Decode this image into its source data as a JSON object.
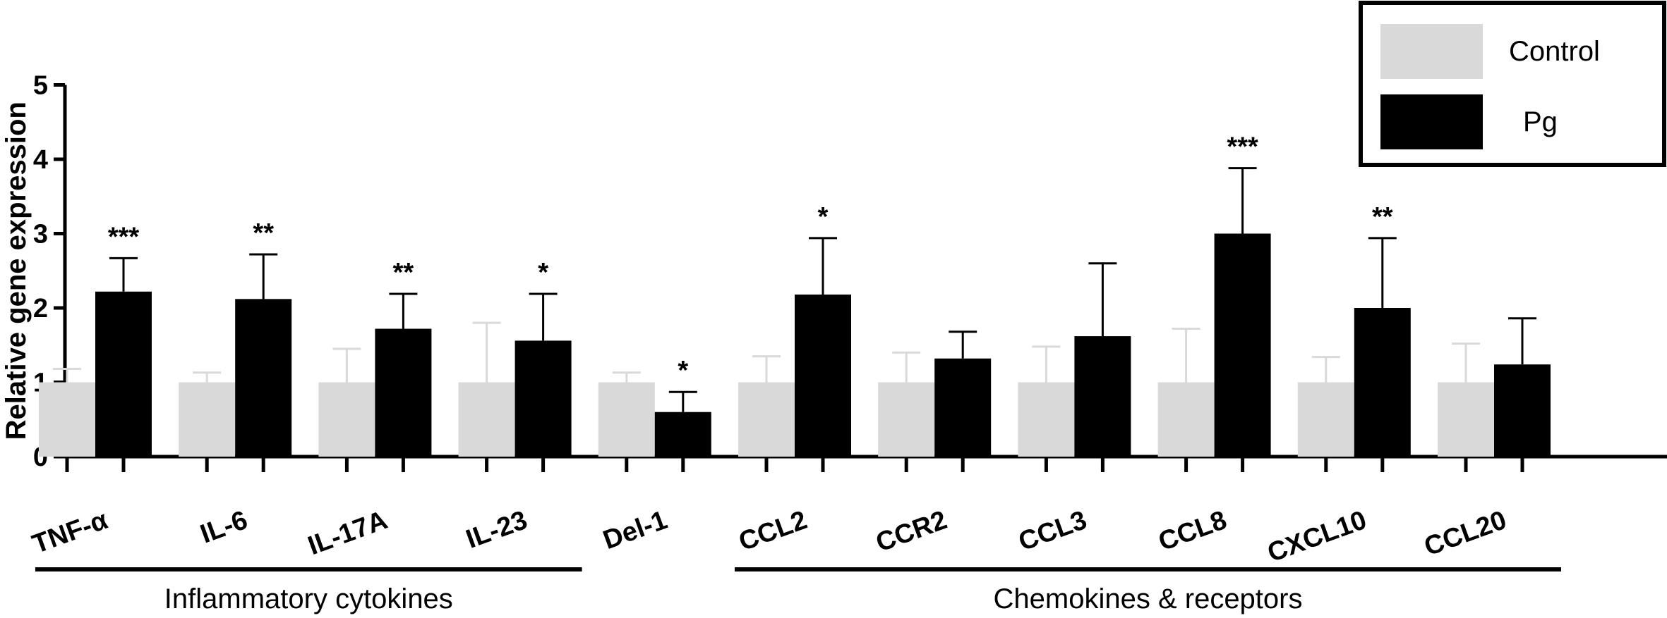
{
  "chart_data": {
    "type": "bar",
    "ylabel": "Relative gene expression",
    "xlabel": "",
    "ylim": [
      0,
      5
    ],
    "yticks": [
      "0",
      "1",
      "2",
      "3",
      "4",
      "5"
    ],
    "categories": [
      "TNF-α",
      "IL-6",
      "IL-17A",
      "IL-23",
      "Del-1",
      "CCL2",
      "CCR2",
      "CCL3",
      "CCL8",
      "CXCL10",
      "CCL20"
    ],
    "series": [
      {
        "name": "Control",
        "color": "#d9d9d9",
        "values": [
          1,
          1,
          1,
          1,
          1,
          1,
          1,
          1,
          1,
          1,
          1
        ],
        "errors": [
          0.18,
          0.13,
          0.45,
          0.8,
          0.13,
          0.35,
          0.4,
          0.48,
          0.72,
          0.34,
          0.52
        ]
      },
      {
        "name": "Pg",
        "color": "#000000",
        "values": [
          2.22,
          2.12,
          1.72,
          1.56,
          0.6,
          2.18,
          1.32,
          1.62,
          3.0,
          2.0,
          1.24
        ],
        "errors": [
          0.45,
          0.6,
          0.47,
          0.63,
          0.27,
          0.76,
          0.36,
          0.98,
          0.88,
          0.94,
          0.62
        ]
      }
    ],
    "significance": [
      "***",
      "**",
      "**",
      "*",
      "*",
      "*",
      "",
      "",
      "***",
      "**",
      ""
    ],
    "groups": [
      {
        "label": "Inflammatory cytokines",
        "from": 0,
        "to": 3
      },
      {
        "label": "Chemokines & receptors",
        "from": 5,
        "to": 10
      }
    ],
    "legend_position": "top-right"
  }
}
